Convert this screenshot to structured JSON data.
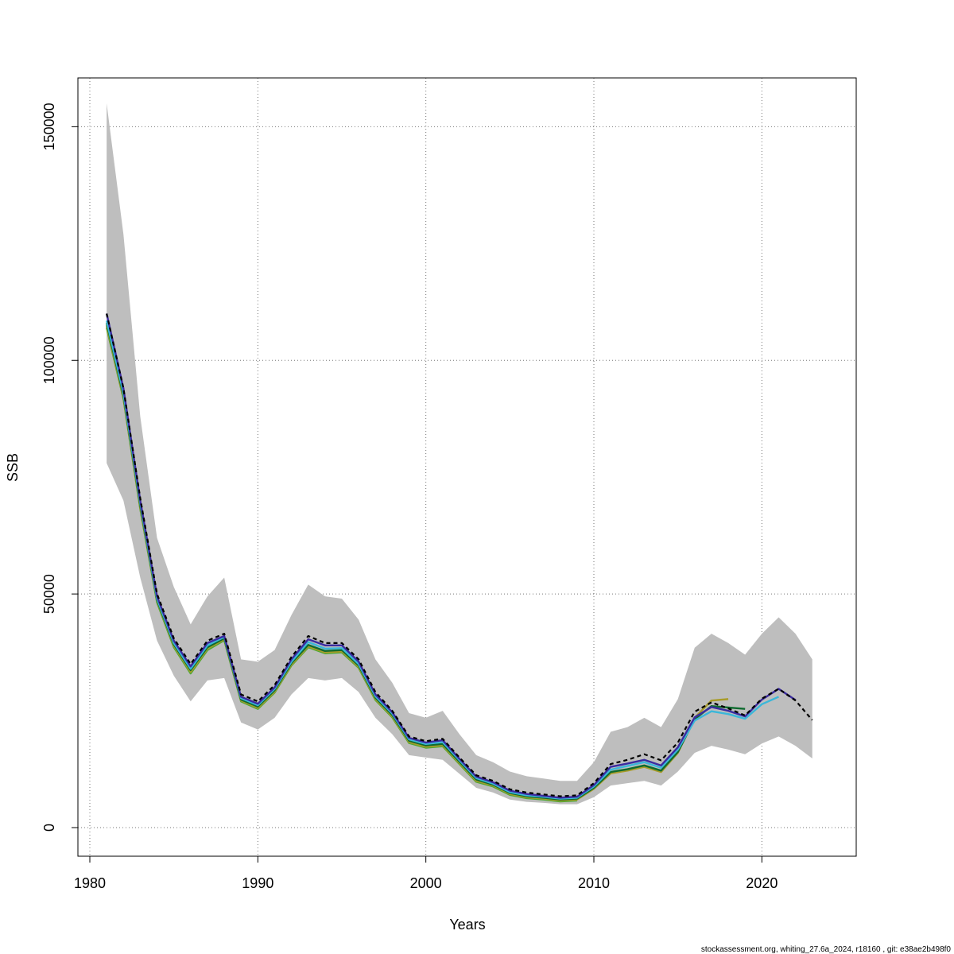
{
  "chart_data": {
    "type": "line",
    "xlabel": "Years",
    "ylabel": "SSB",
    "xlim": [
      1980,
      2025
    ],
    "ylim": [
      0,
      155000
    ],
    "x_ticks": [
      1980,
      1990,
      2000,
      2010,
      2020
    ],
    "y_ticks": [
      0,
      50000,
      100000,
      150000
    ],
    "grid": true,
    "footer": "stockassessment.org, whiting_27.6a_2024, r18160 , git: e38ae2b498f0",
    "band": {
      "color": "#bebebe",
      "x": [
        1981,
        1982,
        1983,
        1984,
        1985,
        1986,
        1987,
        1988,
        1989,
        1990,
        1991,
        1992,
        1993,
        1994,
        1995,
        1996,
        1997,
        1998,
        1999,
        2000,
        2001,
        2002,
        2003,
        2004,
        2005,
        2006,
        2007,
        2008,
        2009,
        2010,
        2011,
        2012,
        2013,
        2014,
        2015,
        2016,
        2017,
        2018,
        2019,
        2020,
        2021,
        2022,
        2023
      ],
      "upper": [
        155000,
        127000,
        88000,
        62000,
        51500,
        43500,
        49500,
        53500,
        36000,
        35500,
        38000,
        45500,
        52000,
        49500,
        49000,
        44500,
        36000,
        31000,
        24500,
        23500,
        25000,
        20000,
        15500,
        14000,
        12000,
        11000,
        10500,
        10000,
        10000,
        14000,
        20500,
        21500,
        23500,
        21500,
        27500,
        38500,
        41500,
        39500,
        37000,
        41500,
        45000,
        41500,
        36000
      ],
      "lower": [
        78000,
        70000,
        53500,
        40000,
        32500,
        27000,
        31500,
        32000,
        22500,
        21000,
        23500,
        28500,
        32000,
        31500,
        32000,
        29000,
        23500,
        20000,
        15500,
        15000,
        14500,
        11500,
        8500,
        7500,
        6000,
        5500,
        5300,
        5000,
        5000,
        6500,
        9000,
        9500,
        10000,
        9000,
        12000,
        16000,
        17500,
        16700,
        15700,
        18000,
        19500,
        17500,
        14800
      ]
    },
    "series": [
      {
        "color": "#000000",
        "dashed": true,
        "x": [
          1981,
          1982,
          1983,
          1984,
          1985,
          1986,
          1987,
          1988,
          1989,
          1990,
          1991,
          1992,
          1993,
          1994,
          1995,
          1996,
          1997,
          1998,
          1999,
          2000,
          2001,
          2002,
          2003,
          2004,
          2005,
          2006,
          2007,
          2008,
          2009,
          2010,
          2011,
          2012,
          2013,
          2014,
          2015,
          2016,
          2017,
          2018,
          2019,
          2020,
          2021,
          2022,
          2023
        ],
        "y": [
          110000,
          94000,
          70500,
          50000,
          40500,
          35000,
          40000,
          41500,
          28500,
          27000,
          30500,
          36500,
          41000,
          39500,
          39500,
          36000,
          29000,
          25000,
          19500,
          18500,
          19000,
          15000,
          11200,
          10000,
          8200,
          7500,
          7100,
          6700,
          6900,
          9500,
          13600,
          14500,
          15700,
          14400,
          18200,
          24800,
          26800,
          25500,
          24000,
          27600,
          29700,
          27200,
          23000
        ]
      },
      {
        "color": "#3b2ba0",
        "dashed": false,
        "x": [
          1981,
          1982,
          1983,
          1984,
          1985,
          1986,
          1987,
          1988,
          1989,
          1990,
          1991,
          1992,
          1993,
          1994,
          1995,
          1996,
          1997,
          1998,
          1999,
          2000,
          2001,
          2002,
          2003,
          2004,
          2005,
          2006,
          2007,
          2008,
          2009,
          2010,
          2011,
          2012,
          2013,
          2014,
          2015,
          2016,
          2017,
          2018,
          2019,
          2020,
          2021,
          2022
        ],
        "y": [
          110000,
          94000,
          70000,
          49500,
          40000,
          34500,
          39500,
          41000,
          28000,
          26500,
          30000,
          36000,
          40300,
          39000,
          39000,
          35500,
          28500,
          24700,
          19200,
          18200,
          18700,
          14700,
          10900,
          9700,
          7900,
          7200,
          6800,
          6400,
          6600,
          9100,
          13000,
          13700,
          14500,
          13300,
          17200,
          23600,
          25800,
          25000,
          23800,
          27400,
          29700,
          27300
        ]
      },
      {
        "color": "#3bb7d9",
        "dashed": false,
        "x": [
          1981,
          1982,
          1983,
          1984,
          1985,
          1986,
          1987,
          1988,
          1989,
          1990,
          1991,
          1992,
          1993,
          1994,
          1995,
          1996,
          1997,
          1998,
          1999,
          2000,
          2001,
          2002,
          2003,
          2004,
          2005,
          2006,
          2007,
          2008,
          2009,
          2010,
          2011,
          2012,
          2013,
          2014,
          2015,
          2016,
          2017,
          2018,
          2019,
          2020,
          2021
        ],
        "y": [
          108500,
          93000,
          69500,
          49000,
          39500,
          34000,
          39000,
          40800,
          27700,
          26200,
          29700,
          35500,
          39700,
          38300,
          38400,
          35000,
          28100,
          24400,
          18900,
          17900,
          18300,
          14400,
          10600,
          9400,
          7600,
          6900,
          6600,
          6200,
          6400,
          8800,
          12400,
          13200,
          14000,
          12800,
          16700,
          22900,
          24900,
          24300,
          23300,
          26400,
          28000
        ]
      },
      {
        "color": "#0e6b2f",
        "dashed": false,
        "x": [
          1981,
          1982,
          1983,
          1984,
          1985,
          1986,
          1987,
          1988,
          1989,
          1990,
          1991,
          1992,
          1993,
          1994,
          1995,
          1996,
          1997,
          1998,
          1999,
          2000,
          2001,
          2002,
          2003,
          2004,
          2005,
          2006,
          2007,
          2008,
          2009,
          2010,
          2011,
          2012,
          2013,
          2014,
          2015,
          2016,
          2017,
          2018,
          2019
        ],
        "y": [
          108000,
          92500,
          69000,
          48700,
          39200,
          33700,
          38600,
          40500,
          27400,
          25900,
          29400,
          35200,
          39100,
          37800,
          38000,
          34700,
          27800,
          24100,
          18600,
          17600,
          17900,
          14100,
          10300,
          9200,
          7400,
          6700,
          6400,
          6000,
          6200,
          8500,
          11900,
          12500,
          13300,
          12200,
          16200,
          23200,
          26000,
          25700,
          25400
        ]
      },
      {
        "color": "#a89c2a",
        "dashed": false,
        "x": [
          1981,
          1982,
          1983,
          1984,
          1985,
          1986,
          1987,
          1988,
          1989,
          1990,
          1991,
          1992,
          1993,
          1994,
          1995,
          1996,
          1997,
          1998,
          1999,
          2000,
          2001,
          2002,
          2003,
          2004,
          2005,
          2006,
          2007,
          2008,
          2009,
          2010,
          2011,
          2012,
          2013,
          2014,
          2015,
          2016,
          2017,
          2018
        ],
        "y": [
          107500,
          92000,
          68500,
          48500,
          38900,
          33300,
          38300,
          40300,
          27200,
          25600,
          29100,
          34900,
          38800,
          37500,
          37700,
          34400,
          27500,
          23800,
          18300,
          17300,
          17600,
          13800,
          10000,
          9000,
          7200,
          6500,
          6200,
          5800,
          6000,
          8300,
          11600,
          12200,
          13000,
          11900,
          16000,
          23500,
          27200,
          27500
        ]
      },
      {
        "color": "#4aa832",
        "dashed": false,
        "x": [
          1981,
          1982,
          1983,
          1984,
          1985,
          1986,
          1987,
          1988,
          1989,
          1990,
          1991,
          1992,
          1993,
          1994,
          1995,
          1996,
          1997,
          1998,
          1999,
          2000,
          2001,
          2002,
          2003,
          2004,
          2005,
          2006,
          2007,
          2008,
          2009
        ],
        "y": [
          107000,
          91800,
          68200,
          48200,
          38600,
          33000,
          38000,
          40100,
          27000,
          25400,
          28900,
          34700,
          38600,
          37300,
          37500,
          34200,
          27300,
          23600,
          18100,
          17100,
          17400,
          13600,
          9800,
          8800,
          7000,
          6300,
          6000,
          5600,
          5800
        ]
      }
    ]
  }
}
